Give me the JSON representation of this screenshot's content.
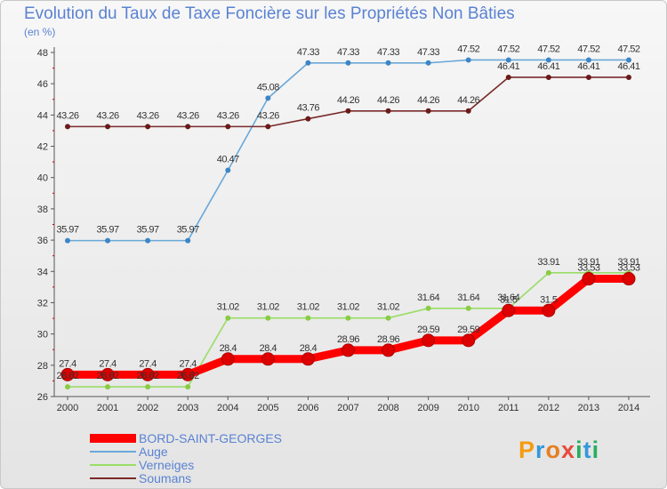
{
  "title": "Evolution du Taux de Taxe Foncière sur les Propriétés Non Bâties",
  "unit_label": "(en %)",
  "logo": {
    "text": "Proxiti",
    "letters": [
      "P",
      "r",
      "o",
      "x",
      "i",
      "t",
      "i"
    ],
    "colors": [
      "#f39c12",
      "#3498db",
      "#e67e22",
      "#e74c3c",
      "#27ae60",
      "#3498db",
      "#27ae60"
    ]
  },
  "legend": [
    {
      "name": "BORD-SAINT-GEORGES",
      "color": "#ff0000"
    },
    {
      "name": "Auge",
      "color": "#6aa8d9"
    },
    {
      "name": "Verneiges",
      "color": "#99dd66"
    },
    {
      "name": "Soumans",
      "color": "#7a2a2a"
    }
  ],
  "chart_data": {
    "type": "line",
    "title": "Evolution du Taux de Taxe Foncière sur les Propriétés Non Bâties",
    "ylabel": "(en %)",
    "xlabel": "",
    "x": [
      "2000",
      "2001",
      "2002",
      "2003",
      "2004",
      "2005",
      "2006",
      "2007",
      "2008",
      "2009",
      "2010",
      "2011",
      "2012",
      "2013",
      "2014"
    ],
    "ylim": [
      26,
      48
    ],
    "yticks": [
      26,
      28,
      30,
      32,
      34,
      36,
      38,
      40,
      42,
      44,
      46,
      48
    ],
    "grid": false,
    "series": [
      {
        "name": "Auge",
        "color": "#6aa8d9",
        "point_color": "#3d85c6",
        "values": [
          35.97,
          35.97,
          35.97,
          35.97,
          40.47,
          45.08,
          47.33,
          47.33,
          47.33,
          47.33,
          47.52,
          47.52,
          47.52,
          47.52,
          47.52
        ],
        "labels": [
          "35.97",
          "35.97",
          "35.97",
          "35.97",
          "40.47",
          "45.08",
          "47.33",
          "47.33",
          "47.33",
          "47.33",
          "47.52",
          "47.52",
          "47.52",
          "47.52",
          "47.52"
        ]
      },
      {
        "name": "Soumans",
        "color": "#7a2a2a",
        "point_color": "#6b1a1a",
        "values": [
          43.26,
          43.26,
          43.26,
          43.26,
          43.26,
          43.26,
          43.76,
          44.26,
          44.26,
          44.26,
          44.26,
          46.41,
          46.41,
          46.41,
          46.41
        ],
        "labels": [
          "43.26",
          "43.26",
          "43.26",
          "43.26",
          "43.26",
          "43.26",
          "43.76",
          "44.26",
          "44.26",
          "44.26",
          "44.26",
          "46.41",
          "46.41",
          "46.41",
          "46.41"
        ]
      },
      {
        "name": "Verneiges",
        "color": "#99dd66",
        "point_color": "#88cc44",
        "values": [
          26.62,
          26.62,
          26.62,
          26.62,
          31.02,
          31.02,
          31.02,
          31.02,
          31.02,
          31.64,
          31.64,
          31.64,
          33.91,
          33.91,
          33.91
        ],
        "labels": [
          "26.62",
          "26.62",
          "26.62",
          "26.62",
          "31.02",
          "31.02",
          "31.02",
          "31.02",
          "31.02",
          "31.64",
          "31.64",
          "31.64",
          "33.91",
          "33.91",
          "33.91"
        ]
      },
      {
        "name": "BORD-SAINT-GEORGES",
        "color": "#ff0000",
        "point_color": "#dd0000",
        "values": [
          27.4,
          27.4,
          27.4,
          27.4,
          28.4,
          28.4,
          28.4,
          28.96,
          28.96,
          29.59,
          29.59,
          31.5,
          31.5,
          33.53,
          33.53
        ],
        "labels": [
          "27.4",
          "27.4",
          "27.4",
          "27.4",
          "28.4",
          "28.4",
          "28.4",
          "28.96",
          "28.96",
          "29.59",
          "29.59",
          "31.5",
          "31.5",
          "33.53",
          "33.53"
        ]
      }
    ]
  }
}
